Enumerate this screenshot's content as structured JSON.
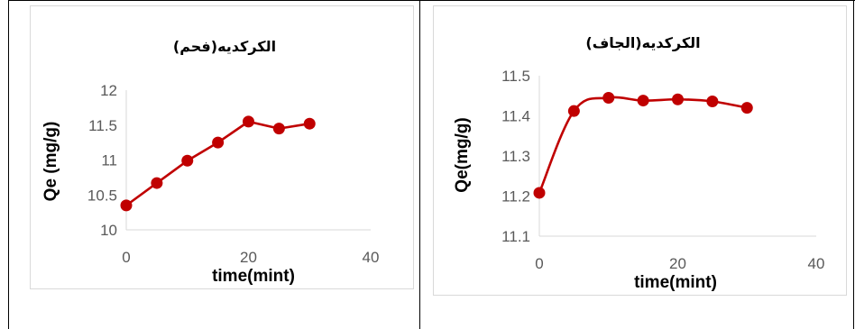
{
  "colors": {
    "series": "#c00000",
    "axis": "#d9d9d9",
    "tick_text": "#595959",
    "border": "#000000"
  },
  "chart_data": [
    {
      "type": "line",
      "title": "الكركديه(فحم)",
      "xlabel": "time(mint)",
      "ylabel": "Qe (mg/g)",
      "xlim": [
        0,
        40
      ],
      "ylim": [
        10,
        12
      ],
      "xticks": [
        "0",
        "20",
        "40"
      ],
      "yticks": [
        "10",
        "10.5",
        "11",
        "11.5",
        "12"
      ],
      "grid": false,
      "smooth": false,
      "series": [
        {
          "x": [
            0,
            5,
            10,
            15,
            20,
            25,
            30
          ],
          "y": [
            10.35,
            10.67,
            10.99,
            11.25,
            11.55,
            11.45,
            11.52
          ]
        }
      ]
    },
    {
      "type": "line",
      "title": "الكركديه(الجاف)",
      "xlabel": "time(mint)",
      "ylabel": "Qe(mg/g)",
      "xlim": [
        0,
        40
      ],
      "ylim": [
        11.1,
        11.5
      ],
      "xticks": [
        "0",
        "20",
        "40"
      ],
      "yticks": [
        "11.1",
        "11.2",
        "11.3",
        "11.4",
        "11.5"
      ],
      "grid": false,
      "smooth": true,
      "series": [
        {
          "x": [
            0,
            5,
            10,
            15,
            20,
            25,
            30
          ],
          "y": [
            11.208,
            11.412,
            11.445,
            11.438,
            11.441,
            11.436,
            11.42
          ]
        }
      ]
    }
  ]
}
